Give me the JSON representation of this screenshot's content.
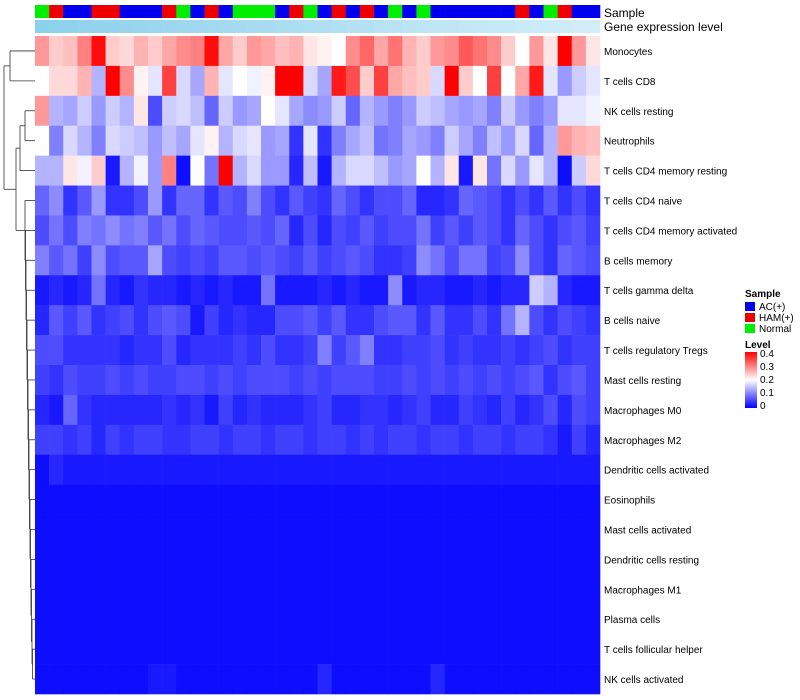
{
  "chart_data": {
    "type": "heatmap",
    "title": "",
    "annotation_tracks": [
      "Sample",
      "Gene expression level"
    ],
    "sample_colors": {
      "AC(+)": "#0000ee",
      "HAM(+)": "#ee0000",
      "Normal": "#00ee00"
    },
    "sample_groups": [
      "Normal",
      "HAM(+)",
      "AC(+)",
      "AC(+)",
      "HAM(+)",
      "HAM(+)",
      "AC(+)",
      "AC(+)",
      "AC(+)",
      "HAM(+)",
      "Normal",
      "AC(+)",
      "HAM(+)",
      "AC(+)",
      "Normal",
      "Normal",
      "Normal",
      "AC(+)",
      "HAM(+)",
      "Normal",
      "AC(+)",
      "HAM(+)",
      "AC(+)",
      "HAM(+)",
      "AC(+)",
      "Normal",
      "AC(+)",
      "Normal",
      "AC(+)",
      "AC(+)",
      "AC(+)",
      "AC(+)",
      "AC(+)",
      "AC(+)",
      "HAM(+)",
      "AC(+)",
      "Normal",
      "HAM(+)",
      "AC(+)",
      "AC(+)"
    ],
    "gene_expression_level": [
      0.95,
      0.92,
      0.9,
      0.88,
      0.86,
      0.84,
      0.82,
      0.8,
      0.78,
      0.76,
      0.74,
      0.72,
      0.7,
      0.68,
      0.66,
      0.64,
      0.62,
      0.6,
      0.58,
      0.56,
      0.54,
      0.52,
      0.5,
      0.48,
      0.46,
      0.44,
      0.42,
      0.4,
      0.38,
      0.36,
      0.34,
      0.32,
      0.3,
      0.28,
      0.26,
      0.24,
      0.22,
      0.2,
      0.18,
      0.16
    ],
    "rows": [
      "Monocytes",
      "T cells CD8",
      "NK cells resting",
      "Neutrophils",
      "T cells CD4 memory resting",
      "T cells CD4 naive",
      "T cells CD4 memory activated",
      "B cells memory",
      "T cells gamma delta",
      "B cells naive",
      "T cells regulatory  Tregs",
      "Mast cells resting",
      "Macrophages M0",
      "Macrophages M2",
      "Dendritic cells activated",
      "Eosinophils",
      "Mast cells activated",
      "Dendritic cells resting",
      "Macrophages M1",
      "Plasma cells",
      "T cells follicular helper",
      "NK cells activated"
    ],
    "values": [
      [
        0.28,
        0.24,
        0.25,
        0.3,
        0.39,
        0.24,
        0.23,
        0.26,
        0.24,
        0.27,
        0.29,
        0.3,
        0.39,
        0.27,
        0.24,
        0.28,
        0.27,
        0.25,
        0.26,
        0.22,
        0.21,
        0.2,
        0.29,
        0.32,
        0.27,
        0.31,
        0.26,
        0.24,
        0.28,
        0.29,
        0.33,
        0.31,
        0.29,
        0.24,
        0.2,
        0.28,
        0.22,
        0.4,
        0.28,
        0.22
      ],
      [
        0.2,
        0.23,
        0.23,
        0.26,
        0.14,
        0.4,
        0.29,
        0.21,
        0.18,
        0.35,
        0.17,
        0.13,
        0.26,
        0.18,
        0.2,
        0.19,
        0.21,
        0.4,
        0.4,
        0.17,
        0.13,
        0.38,
        0.34,
        0.24,
        0.35,
        0.27,
        0.25,
        0.24,
        0.17,
        0.4,
        0.24,
        0.2,
        0.35,
        0.2,
        0.27,
        0.38,
        0.18,
        0.12,
        0.16,
        0.18
      ],
      [
        0.28,
        0.14,
        0.13,
        0.16,
        0.12,
        0.16,
        0.14,
        0.22,
        0.06,
        0.16,
        0.17,
        0.15,
        0.08,
        0.16,
        0.12,
        0.13,
        0.2,
        0.18,
        0.13,
        0.11,
        0.12,
        0.16,
        0.08,
        0.14,
        0.12,
        0.1,
        0.12,
        0.16,
        0.15,
        0.13,
        0.12,
        0.13,
        0.1,
        0.16,
        0.12,
        0.1,
        0.12,
        0.18,
        0.18,
        0.19
      ],
      [
        0.2,
        0.1,
        0.17,
        0.14,
        0.1,
        0.17,
        0.16,
        0.15,
        0.12,
        0.15,
        0.13,
        0.18,
        0.21,
        0.14,
        0.17,
        0.18,
        0.12,
        0.13,
        0.04,
        0.18,
        0.04,
        0.1,
        0.13,
        0.15,
        0.09,
        0.1,
        0.13,
        0.12,
        0.1,
        0.16,
        0.13,
        0.1,
        0.15,
        0.12,
        0.17,
        0.08,
        0.14,
        0.28,
        0.26,
        0.25
      ],
      [
        0.14,
        0.14,
        0.22,
        0.19,
        0.24,
        0.02,
        0.14,
        0.19,
        0.12,
        0.3,
        0.01,
        0.2,
        0.09,
        0.4,
        0.14,
        0.17,
        0.12,
        0.12,
        0.03,
        0.15,
        0.02,
        0.14,
        0.17,
        0.17,
        0.15,
        0.12,
        0.13,
        0.2,
        0.14,
        0.22,
        0.02,
        0.22,
        0.09,
        0.17,
        0.12,
        0.18,
        0.14,
        0.01,
        0.16,
        0.23
      ],
      [
        0.08,
        0.11,
        0.04,
        0.07,
        0.12,
        0.04,
        0.04,
        0.06,
        0.12,
        0.04,
        0.08,
        0.08,
        0.04,
        0.07,
        0.06,
        0.1,
        0.06,
        0.04,
        0.07,
        0.05,
        0.04,
        0.08,
        0.06,
        0.04,
        0.06,
        0.06,
        0.08,
        0.03,
        0.03,
        0.04,
        0.08,
        0.07,
        0.06,
        0.04,
        0.06,
        0.04,
        0.07,
        0.04,
        0.06,
        0.04
      ],
      [
        0.06,
        0.09,
        0.06,
        0.1,
        0.09,
        0.11,
        0.09,
        0.1,
        0.07,
        0.09,
        0.06,
        0.08,
        0.07,
        0.06,
        0.06,
        0.07,
        0.06,
        0.08,
        0.03,
        0.06,
        0.03,
        0.06,
        0.05,
        0.07,
        0.05,
        0.06,
        0.06,
        0.09,
        0.05,
        0.07,
        0.05,
        0.07,
        0.06,
        0.04,
        0.08,
        0.06,
        0.04,
        0.06,
        0.07,
        0.05
      ],
      [
        0.1,
        0.07,
        0.09,
        0.05,
        0.11,
        0.06,
        0.07,
        0.07,
        0.13,
        0.06,
        0.05,
        0.06,
        0.05,
        0.07,
        0.07,
        0.06,
        0.07,
        0.06,
        0.05,
        0.07,
        0.05,
        0.06,
        0.07,
        0.06,
        0.04,
        0.04,
        0.05,
        0.11,
        0.09,
        0.06,
        0.09,
        0.09,
        0.05,
        0.06,
        0.11,
        0.06,
        0.04,
        0.08,
        0.07,
        0.06
      ],
      [
        0.02,
        0.03,
        0.02,
        0.03,
        0.09,
        0.03,
        0.02,
        0.04,
        0.03,
        0.03,
        0.02,
        0.03,
        0.02,
        0.03,
        0.02,
        0.02,
        0.09,
        0.02,
        0.02,
        0.02,
        0.03,
        0.02,
        0.03,
        0.02,
        0.02,
        0.11,
        0.02,
        0.03,
        0.03,
        0.02,
        0.02,
        0.03,
        0.02,
        0.03,
        0.03,
        0.16,
        0.14,
        0.03,
        0.02,
        0.02
      ],
      [
        0.03,
        0.07,
        0.05,
        0.07,
        0.04,
        0.05,
        0.06,
        0.04,
        0.06,
        0.07,
        0.06,
        0.02,
        0.05,
        0.03,
        0.04,
        0.03,
        0.03,
        0.06,
        0.06,
        0.07,
        0.05,
        0.07,
        0.04,
        0.04,
        0.06,
        0.07,
        0.07,
        0.04,
        0.07,
        0.04,
        0.04,
        0.06,
        0.04,
        0.09,
        0.14,
        0.06,
        0.04,
        0.06,
        0.05,
        0.04
      ],
      [
        0.06,
        0.06,
        0.04,
        0.04,
        0.04,
        0.04,
        0.03,
        0.04,
        0.04,
        0.06,
        0.03,
        0.04,
        0.04,
        0.04,
        0.05,
        0.04,
        0.06,
        0.04,
        0.04,
        0.05,
        0.1,
        0.05,
        0.07,
        0.1,
        0.04,
        0.04,
        0.05,
        0.05,
        0.06,
        0.04,
        0.05,
        0.04,
        0.04,
        0.05,
        0.04,
        0.05,
        0.06,
        0.04,
        0.05,
        0.05
      ],
      [
        0.05,
        0.04,
        0.06,
        0.05,
        0.05,
        0.06,
        0.05,
        0.06,
        0.05,
        0.05,
        0.06,
        0.06,
        0.05,
        0.06,
        0.05,
        0.06,
        0.06,
        0.06,
        0.05,
        0.06,
        0.05,
        0.06,
        0.06,
        0.06,
        0.05,
        0.05,
        0.06,
        0.05,
        0.06,
        0.05,
        0.06,
        0.05,
        0.06,
        0.05,
        0.06,
        0.07,
        0.04,
        0.06,
        0.07,
        0.05
      ],
      [
        0.03,
        0.02,
        0.08,
        0.04,
        0.03,
        0.03,
        0.03,
        0.03,
        0.03,
        0.04,
        0.03,
        0.04,
        0.02,
        0.05,
        0.03,
        0.04,
        0.03,
        0.03,
        0.03,
        0.04,
        0.05,
        0.03,
        0.03,
        0.04,
        0.04,
        0.03,
        0.04,
        0.05,
        0.03,
        0.03,
        0.05,
        0.04,
        0.03,
        0.05,
        0.03,
        0.04,
        0.06,
        0.03,
        0.06,
        0.05
      ],
      [
        0.05,
        0.05,
        0.04,
        0.05,
        0.03,
        0.05,
        0.04,
        0.05,
        0.05,
        0.04,
        0.04,
        0.05,
        0.05,
        0.04,
        0.05,
        0.05,
        0.04,
        0.05,
        0.05,
        0.04,
        0.05,
        0.05,
        0.04,
        0.05,
        0.04,
        0.05,
        0.05,
        0.04,
        0.05,
        0.05,
        0.04,
        0.05,
        0.05,
        0.04,
        0.05,
        0.05,
        0.04,
        0.02,
        0.05,
        0.03
      ],
      [
        0.01,
        0.03,
        0.02,
        0.02,
        0.02,
        0.02,
        0.02,
        0.02,
        0.02,
        0.02,
        0.02,
        0.02,
        0.02,
        0.02,
        0.02,
        0.02,
        0.02,
        0.02,
        0.02,
        0.02,
        0.02,
        0.02,
        0.02,
        0.02,
        0.02,
        0.02,
        0.02,
        0.02,
        0.02,
        0.02,
        0.02,
        0.02,
        0.02,
        0.02,
        0.02,
        0.02,
        0.02,
        0.02,
        0.02,
        0.02
      ],
      [
        0.01,
        0.01,
        0.01,
        0.01,
        0.01,
        0.01,
        0.01,
        0.01,
        0.01,
        0.01,
        0.01,
        0.01,
        0.01,
        0.01,
        0.01,
        0.01,
        0.01,
        0.01,
        0.01,
        0.01,
        0.01,
        0.01,
        0.01,
        0.01,
        0.01,
        0.01,
        0.01,
        0.01,
        0.01,
        0.01,
        0.01,
        0.01,
        0.01,
        0.01,
        0.01,
        0.01,
        0.01,
        0.01,
        0.01,
        0.01
      ],
      [
        0.01,
        0.01,
        0.01,
        0.01,
        0.01,
        0.01,
        0.01,
        0.01,
        0.01,
        0.01,
        0.01,
        0.01,
        0.01,
        0.01,
        0.01,
        0.01,
        0.01,
        0.01,
        0.01,
        0.01,
        0.01,
        0.01,
        0.01,
        0.01,
        0.01,
        0.01,
        0.01,
        0.01,
        0.01,
        0.01,
        0.01,
        0.01,
        0.01,
        0.01,
        0.01,
        0.01,
        0.01,
        0.01,
        0.01,
        0.01
      ],
      [
        0.01,
        0.01,
        0.01,
        0.01,
        0.01,
        0.01,
        0.01,
        0.01,
        0.01,
        0.01,
        0.01,
        0.01,
        0.01,
        0.01,
        0.01,
        0.01,
        0.01,
        0.01,
        0.01,
        0.01,
        0.01,
        0.01,
        0.01,
        0.01,
        0.01,
        0.01,
        0.01,
        0.01,
        0.01,
        0.01,
        0.01,
        0.01,
        0.01,
        0.01,
        0.01,
        0.01,
        0.01,
        0.01,
        0.01,
        0.01
      ],
      [
        0.01,
        0.01,
        0.01,
        0.01,
        0.01,
        0.01,
        0.01,
        0.01,
        0.01,
        0.01,
        0.01,
        0.01,
        0.01,
        0.01,
        0.01,
        0.01,
        0.01,
        0.01,
        0.01,
        0.01,
        0.01,
        0.01,
        0.01,
        0.01,
        0.01,
        0.01,
        0.01,
        0.01,
        0.01,
        0.01,
        0.01,
        0.01,
        0.01,
        0.01,
        0.01,
        0.01,
        0.01,
        0.01,
        0.01,
        0.01
      ],
      [
        0.01,
        0.01,
        0.01,
        0.01,
        0.01,
        0.01,
        0.01,
        0.01,
        0.01,
        0.01,
        0.01,
        0.01,
        0.01,
        0.01,
        0.01,
        0.01,
        0.01,
        0.01,
        0.01,
        0.01,
        0.01,
        0.01,
        0.01,
        0.01,
        0.01,
        0.01,
        0.01,
        0.01,
        0.01,
        0.01,
        0.01,
        0.01,
        0.01,
        0.01,
        0.01,
        0.01,
        0.01,
        0.01,
        0.01,
        0.01
      ],
      [
        0.01,
        0.01,
        0.01,
        0.01,
        0.01,
        0.01,
        0.01,
        0.01,
        0.01,
        0.01,
        0.01,
        0.01,
        0.01,
        0.01,
        0.01,
        0.01,
        0.01,
        0.01,
        0.01,
        0.01,
        0.01,
        0.01,
        0.01,
        0.01,
        0.01,
        0.01,
        0.01,
        0.01,
        0.01,
        0.01,
        0.01,
        0.01,
        0.01,
        0.01,
        0.01,
        0.01,
        0.01,
        0.01,
        0.01,
        0.01
      ],
      [
        0.01,
        0.01,
        0.01,
        0.01,
        0.01,
        0.01,
        0.01,
        0.01,
        0.02,
        0.02,
        0.01,
        0.01,
        0.01,
        0.01,
        0.01,
        0.01,
        0.01,
        0.01,
        0.01,
        0.01,
        0.03,
        0.01,
        0.01,
        0.01,
        0.01,
        0.01,
        0.01,
        0.01,
        0.03,
        0.01,
        0.01,
        0.01,
        0.01,
        0.01,
        0.01,
        0.01,
        0.01,
        0.01,
        0.01,
        0.01
      ]
    ],
    "legend": {
      "sample_title": "Sample",
      "sample_labels": [
        "AC(+)",
        "HAM(+)",
        "Normal"
      ],
      "level_title": "Level",
      "level_ticks": [
        "0.4",
        "0.3",
        "0.2",
        "0.1",
        "0"
      ],
      "level_range": [
        0,
        0.4
      ],
      "placement": "right"
    },
    "colors": {
      "low": "#0000ff",
      "mid": "#ffffff",
      "high": "#ff0000",
      "annotation_light": "#e0f4fb",
      "annotation_dark": "#87ceeb"
    },
    "dendrogram": "rows"
  }
}
